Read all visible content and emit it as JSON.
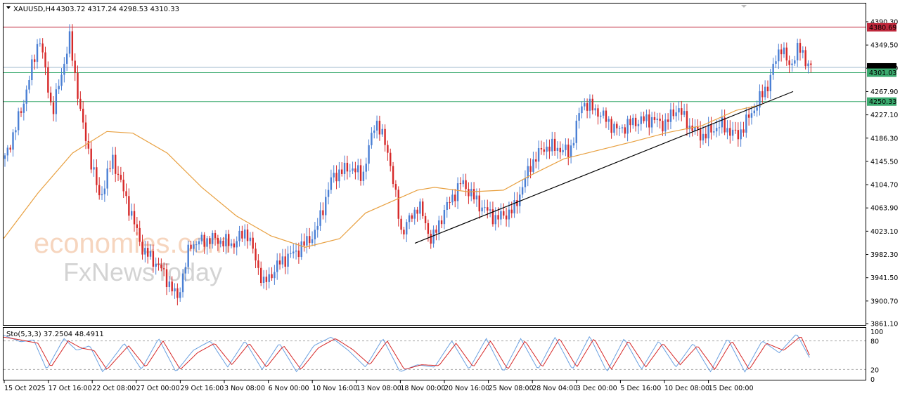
{
  "header": {
    "symbol_timeframe": "XAUUSD,H4",
    "ohlc": "4303.72 4317.24 4298.53 4310.33"
  },
  "colors": {
    "bull": "#4a7fd4",
    "bear": "#d62828",
    "ma": "#e8a040",
    "resistance": "#c0283c",
    "level": "#3aaa6e",
    "price_line": "#9fb8cc",
    "stoch_main": "#6aa0e0",
    "stoch_signal": "#d62828",
    "trendline": "#000000"
  },
  "watermark": {
    "line1": "economies.com",
    "line2": "FxNewsToday"
  },
  "price_axis": {
    "ticks": [
      "4390.30",
      "4349.50",
      "4308.90",
      "4267.90",
      "4227.10",
      "4186.30",
      "4145.50",
      "4104.70",
      "4063.90",
      "4023.10",
      "3982.30",
      "3941.50",
      "3900.70",
      "3861.10"
    ],
    "markers": [
      {
        "label": "4380.69",
        "value": 4380.69,
        "color": "#c0283c"
      },
      {
        "label": "4310.33",
        "value": 4310.33,
        "color": "#000000"
      },
      {
        "label": "4301.03",
        "value": 4301.03,
        "color": "#3aaa6e"
      },
      {
        "label": "4250.33",
        "value": 4250.33,
        "color": "#3aaa6e"
      }
    ]
  },
  "time_axis": {
    "labels": [
      "15 Oct 2025",
      "17 Oct 16:00",
      "22 Oct 08:00",
      "27 Oct 00:00",
      "29 Oct 16:00",
      "3 Nov 08:00",
      "6 Nov 00:00",
      "10 Nov 16:00",
      "13 Nov 08:00",
      "18 Nov 00:00",
      "20 Nov 16:00",
      "25 Nov 08:00",
      "28 Nov 04:00",
      "3 Dec 00:00",
      "5 Dec 16:00",
      "10 Dec 08:00",
      "15 Dec 00:00"
    ]
  },
  "stochastic": {
    "label": "Sto(5,3,3) 37.2504 48.4911",
    "levels": [
      "100",
      "80",
      "20",
      "0"
    ]
  },
  "chart_data": {
    "type": "candlestick",
    "instrument": "XAUUSD",
    "timeframe": "H4",
    "ylim": [
      3861.1,
      4390.3
    ],
    "horizontal_levels": [
      4380.69,
      4301.03,
      4250.33
    ],
    "current_price": 4310.33,
    "trendline": {
      "from": {
        "x": "18 Nov 00:00",
        "y": 4002
      },
      "to": {
        "x": "16 Dec",
        "y": 4268
      }
    },
    "ma_path": [
      [
        0,
        4010
      ],
      [
        0.04,
        4090
      ],
      [
        0.08,
        4160
      ],
      [
        0.12,
        4198
      ],
      [
        0.15,
        4195
      ],
      [
        0.19,
        4160
      ],
      [
        0.23,
        4100
      ],
      [
        0.27,
        4050
      ],
      [
        0.31,
        4015
      ],
      [
        0.35,
        3995
      ],
      [
        0.39,
        4010
      ],
      [
        0.42,
        4055
      ],
      [
        0.45,
        4075
      ],
      [
        0.48,
        4095
      ],
      [
        0.5,
        4100
      ],
      [
        0.54,
        4092
      ],
      [
        0.58,
        4095
      ],
      [
        0.61,
        4120
      ],
      [
        0.65,
        4150
      ],
      [
        0.69,
        4165
      ],
      [
        0.73,
        4180
      ],
      [
        0.77,
        4196
      ],
      [
        0.81,
        4208
      ],
      [
        0.85,
        4235
      ],
      [
        0.88,
        4245
      ]
    ],
    "price_path": [
      [
        0,
        4150
      ],
      [
        0.02,
        4240
      ],
      [
        0.04,
        4365
      ],
      [
        0.055,
        4230
      ],
      [
        0.075,
        4360
      ],
      [
        0.09,
        4210
      ],
      [
        0.11,
        4080
      ],
      [
        0.125,
        4150
      ],
      [
        0.145,
        4060
      ],
      [
        0.16,
        3990
      ],
      [
        0.18,
        3960
      ],
      [
        0.2,
        3905
      ],
      [
        0.215,
        4000
      ],
      [
        0.24,
        4010
      ],
      [
        0.265,
        4000
      ],
      [
        0.28,
        4025
      ],
      [
        0.3,
        3930
      ],
      [
        0.32,
        3970
      ],
      [
        0.34,
        3990
      ],
      [
        0.36,
        4020
      ],
      [
        0.38,
        4120
      ],
      [
        0.4,
        4135
      ],
      [
        0.415,
        4120
      ],
      [
        0.43,
        4220
      ],
      [
        0.445,
        4160
      ],
      [
        0.46,
        4020
      ],
      [
        0.48,
        4070
      ],
      [
        0.495,
        4005
      ],
      [
        0.51,
        4060
      ],
      [
        0.53,
        4110
      ],
      [
        0.55,
        4070
      ],
      [
        0.57,
        4045
      ],
      [
        0.59,
        4060
      ],
      [
        0.61,
        4140
      ],
      [
        0.625,
        4170
      ],
      [
        0.64,
        4170
      ],
      [
        0.655,
        4160
      ],
      [
        0.67,
        4250
      ],
      [
        0.69,
        4230
      ],
      [
        0.71,
        4200
      ],
      [
        0.73,
        4215
      ],
      [
        0.75,
        4220
      ],
      [
        0.765,
        4210
      ],
      [
        0.78,
        4240
      ],
      [
        0.795,
        4205
      ],
      [
        0.81,
        4190
      ],
      [
        0.83,
        4210
      ],
      [
        0.85,
        4190
      ],
      [
        0.87,
        4240
      ],
      [
        0.885,
        4280
      ],
      [
        0.9,
        4350
      ],
      [
        0.91,
        4310
      ],
      [
        0.92,
        4345
      ],
      [
        0.935,
        4310
      ]
    ],
    "stoch_main": [
      [
        0,
        92
      ],
      [
        0.02,
        78
      ],
      [
        0.035,
        82
      ],
      [
        0.05,
        20
      ],
      [
        0.07,
        85
      ],
      [
        0.085,
        60
      ],
      [
        0.1,
        70
      ],
      [
        0.115,
        15
      ],
      [
        0.14,
        75
      ],
      [
        0.16,
        20
      ],
      [
        0.18,
        85
      ],
      [
        0.2,
        15
      ],
      [
        0.22,
        60
      ],
      [
        0.24,
        80
      ],
      [
        0.26,
        25
      ],
      [
        0.28,
        80
      ],
      [
        0.3,
        20
      ],
      [
        0.32,
        75
      ],
      [
        0.34,
        15
      ],
      [
        0.36,
        70
      ],
      [
        0.38,
        88
      ],
      [
        0.4,
        60
      ],
      [
        0.42,
        25
      ],
      [
        0.44,
        85
      ],
      [
        0.46,
        15
      ],
      [
        0.48,
        30
      ],
      [
        0.5,
        25
      ],
      [
        0.52,
        80
      ],
      [
        0.54,
        20
      ],
      [
        0.56,
        85
      ],
      [
        0.58,
        15
      ],
      [
        0.6,
        85
      ],
      [
        0.62,
        20
      ],
      [
        0.64,
        88
      ],
      [
        0.66,
        20
      ],
      [
        0.68,
        90
      ],
      [
        0.7,
        15
      ],
      [
        0.72,
        85
      ],
      [
        0.74,
        20
      ],
      [
        0.76,
        80
      ],
      [
        0.78,
        25
      ],
      [
        0.8,
        75
      ],
      [
        0.82,
        15
      ],
      [
        0.84,
        85
      ],
      [
        0.86,
        15
      ],
      [
        0.88,
        80
      ],
      [
        0.9,
        55
      ],
      [
        0.92,
        95
      ],
      [
        0.935,
        45
      ]
    ],
    "stoch_signal": [
      [
        0,
        88
      ],
      [
        0.02,
        82
      ],
      [
        0.04,
        75
      ],
      [
        0.055,
        25
      ],
      [
        0.075,
        80
      ],
      [
        0.09,
        65
      ],
      [
        0.105,
        60
      ],
      [
        0.12,
        20
      ],
      [
        0.145,
        70
      ],
      [
        0.165,
        25
      ],
      [
        0.185,
        80
      ],
      [
        0.205,
        20
      ],
      [
        0.225,
        55
      ],
      [
        0.245,
        75
      ],
      [
        0.265,
        30
      ],
      [
        0.285,
        75
      ],
      [
        0.305,
        25
      ],
      [
        0.325,
        70
      ],
      [
        0.345,
        20
      ],
      [
        0.365,
        65
      ],
      [
        0.385,
        85
      ],
      [
        0.405,
        62
      ],
      [
        0.425,
        30
      ],
      [
        0.445,
        80
      ],
      [
        0.465,
        20
      ],
      [
        0.485,
        30
      ],
      [
        0.505,
        28
      ],
      [
        0.525,
        75
      ],
      [
        0.545,
        25
      ],
      [
        0.565,
        80
      ],
      [
        0.585,
        20
      ],
      [
        0.605,
        80
      ],
      [
        0.625,
        25
      ],
      [
        0.645,
        85
      ],
      [
        0.665,
        25
      ],
      [
        0.685,
        85
      ],
      [
        0.705,
        20
      ],
      [
        0.725,
        80
      ],
      [
        0.745,
        25
      ],
      [
        0.765,
        75
      ],
      [
        0.785,
        30
      ],
      [
        0.805,
        70
      ],
      [
        0.825,
        20
      ],
      [
        0.845,
        80
      ],
      [
        0.865,
        20
      ],
      [
        0.885,
        75
      ],
      [
        0.905,
        60
      ],
      [
        0.925,
        90
      ],
      [
        0.935,
        50
      ]
    ]
  }
}
